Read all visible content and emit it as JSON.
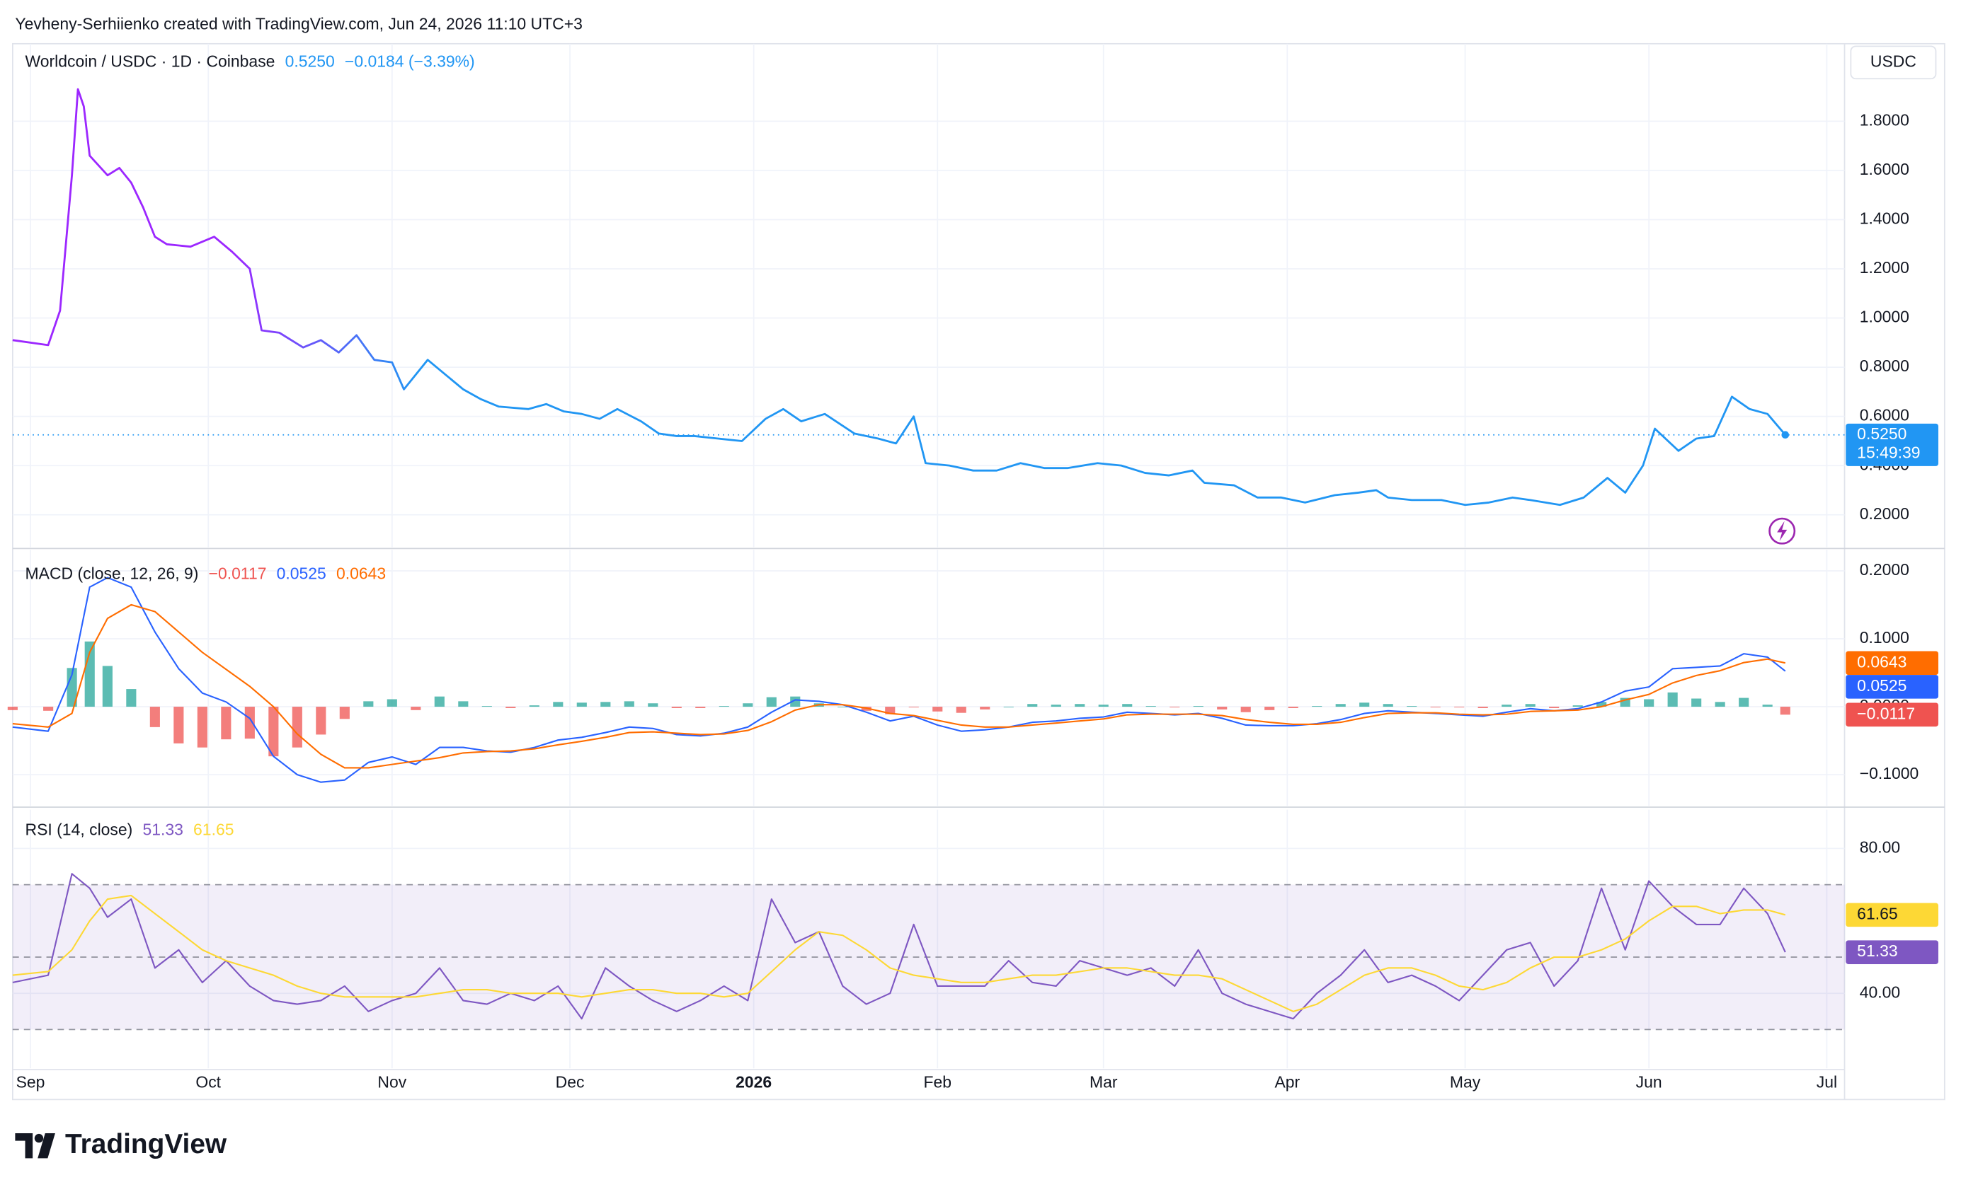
{
  "header": {
    "credit": "Yevheny-Serhiienko created with TradingView.com, Jun 24, 2026 11:10 UTC+3"
  },
  "footer": {
    "brand": "TradingView"
  },
  "chart_data": [
    {
      "type": "line",
      "title": "Worldcoin / USDC · 1D · Coinbase",
      "change": "−0.0184 (−3.39%)",
      "axis_unit": "USDC",
      "countdown": "15:49:39",
      "grid": true,
      "xlim": [
        -3,
        306
      ],
      "xticks": [
        {
          "value": 0,
          "label": "Sep"
        },
        {
          "value": 30,
          "label": "Oct"
        },
        {
          "value": 61,
          "label": "Nov"
        },
        {
          "value": 91,
          "label": "Dec"
        },
        {
          "value": 122,
          "label": "2026"
        },
        {
          "value": 153,
          "label": "Feb"
        },
        {
          "value": 181,
          "label": "Mar"
        },
        {
          "value": 212,
          "label": "Apr"
        },
        {
          "value": 242,
          "label": "May"
        },
        {
          "value": 273,
          "label": "Jun"
        },
        {
          "value": 303,
          "label": "Jul"
        }
      ],
      "ylim": [
        0.068,
        2.115
      ],
      "yticks": [
        {
          "value": 0.2,
          "label": "0.2000"
        },
        {
          "value": 0.4,
          "label": "0.4000"
        },
        {
          "value": 0.6,
          "label": "0.6000"
        },
        {
          "value": 0.8,
          "label": "0.8000"
        },
        {
          "value": 1.0,
          "label": "1.0000"
        },
        {
          "value": 1.2,
          "label": "1.2000"
        },
        {
          "value": 1.4,
          "label": "1.4000"
        },
        {
          "value": 1.6,
          "label": "1.6000"
        },
        {
          "value": 1.8,
          "label": "1.8000"
        }
      ],
      "x": [
        -3,
        3,
        5,
        7,
        8,
        9,
        10,
        13,
        15,
        17,
        19,
        21,
        23,
        27,
        31,
        34,
        37,
        39,
        42,
        46,
        49,
        52,
        55,
        58,
        61,
        63,
        67,
        70,
        73,
        76,
        79,
        84,
        87,
        90,
        93,
        96,
        99,
        103,
        106,
        109,
        112,
        116,
        120,
        124,
        127,
        130,
        134,
        139,
        143,
        146,
        149,
        151,
        155,
        159,
        163,
        167,
        171,
        175,
        180,
        184,
        188,
        192,
        196,
        198,
        203,
        207,
        211,
        215,
        220,
        224,
        227,
        229,
        233,
        238,
        242,
        246,
        250,
        253,
        258,
        262,
        266,
        269,
        272,
        274,
        278,
        281,
        284,
        287,
        290,
        293,
        296
      ],
      "series": [
        {
          "color": "#2196f3",
          "gradient_from": "#9c27ff",
          "last_label": "0.5250",
          "values": [
            0.91,
            0.89,
            1.03,
            1.58,
            1.93,
            1.86,
            1.66,
            1.58,
            1.61,
            1.55,
            1.45,
            1.33,
            1.3,
            1.29,
            1.33,
            1.27,
            1.2,
            0.95,
            0.94,
            0.88,
            0.91,
            0.86,
            0.93,
            0.83,
            0.82,
            0.71,
            0.83,
            0.77,
            0.71,
            0.67,
            0.64,
            0.63,
            0.65,
            0.62,
            0.61,
            0.59,
            0.63,
            0.58,
            0.53,
            0.52,
            0.52,
            0.51,
            0.5,
            0.59,
            0.63,
            0.58,
            0.61,
            0.53,
            0.51,
            0.49,
            0.6,
            0.41,
            0.4,
            0.38,
            0.38,
            0.41,
            0.39,
            0.39,
            0.41,
            0.4,
            0.37,
            0.36,
            0.38,
            0.33,
            0.32,
            0.27,
            0.27,
            0.25,
            0.28,
            0.29,
            0.3,
            0.27,
            0.26,
            0.26,
            0.24,
            0.25,
            0.27,
            0.26,
            0.24,
            0.27,
            0.35,
            0.29,
            0.4,
            0.55,
            0.46,
            0.51,
            0.52,
            0.68,
            0.63,
            0.61,
            0.525
          ]
        }
      ]
    },
    {
      "type": "line",
      "title": "MACD (close, 12, 26, 9)",
      "grid": true,
      "xlim": [
        -3,
        306
      ],
      "ylim": [
        -0.146,
        0.231
      ],
      "yticks": [
        {
          "value": 0.2,
          "label": "0.2000"
        },
        {
          "value": 0.1,
          "label": "0.1000"
        },
        {
          "value": 0,
          "label": "0.0000"
        },
        {
          "value": -0.1,
          "label": "−0.1000"
        }
      ],
      "x": [
        -3,
        3,
        7,
        10,
        13,
        17,
        21,
        25,
        29,
        33,
        37,
        41,
        45,
        49,
        53,
        57,
        61,
        65,
        69,
        73,
        77,
        81,
        85,
        89,
        93,
        97,
        101,
        105,
        109,
        113,
        117,
        121,
        125,
        129,
        133,
        137,
        141,
        145,
        149,
        153,
        157,
        161,
        165,
        169,
        173,
        177,
        181,
        185,
        189,
        193,
        197,
        201,
        205,
        209,
        213,
        217,
        221,
        225,
        229,
        233,
        237,
        241,
        245,
        249,
        253,
        257,
        261,
        265,
        269,
        273,
        277,
        281,
        285,
        289,
        293,
        296
      ],
      "series": [
        {
          "type": "bar",
          "color": "#ef5350",
          "positive_color": "#26a69a",
          "negative_color": "#ef5350",
          "last_label": "−0.0117",
          "values": [
            -0.005,
            -0.006,
            0.057,
            0.096,
            0.06,
            0.026,
            -0.03,
            -0.054,
            -0.06,
            -0.048,
            -0.047,
            -0.073,
            -0.06,
            -0.041,
            -0.018,
            0.008,
            0.011,
            -0.005,
            0.015,
            0.008,
            0.001,
            -0.002,
            0.002,
            0.007,
            0.006,
            0.007,
            0.008,
            0.005,
            -0.002,
            -0.002,
            0.001,
            0.005,
            0.014,
            0.015,
            0.005,
            0.0,
            -0.006,
            -0.011,
            -0.001,
            -0.007,
            -0.009,
            -0.004,
            0.0,
            0.004,
            0.003,
            0.004,
            0.003,
            0.004,
            0.001,
            -0.001,
            0.001,
            -0.004,
            -0.008,
            -0.005,
            -0.002,
            0.001,
            0.004,
            0.006,
            0.004,
            0.001,
            -0.001,
            -0.001,
            -0.002,
            0.003,
            0.004,
            -0.002,
            0.002,
            0.007,
            0.013,
            0.011,
            0.021,
            0.012,
            0.007,
            0.013,
            0.003,
            -0.0117
          ]
        },
        {
          "color": "#2962ff",
          "last_label": "0.0525",
          "values": [
            -0.03,
            -0.036,
            0.047,
            0.176,
            0.19,
            0.176,
            0.11,
            0.056,
            0.02,
            0.007,
            -0.017,
            -0.073,
            -0.1,
            -0.111,
            -0.108,
            -0.082,
            -0.074,
            -0.085,
            -0.06,
            -0.06,
            -0.065,
            -0.067,
            -0.06,
            -0.049,
            -0.045,
            -0.038,
            -0.03,
            -0.032,
            -0.041,
            -0.043,
            -0.039,
            -0.03,
            -0.008,
            0.01,
            0.008,
            0.003,
            -0.008,
            -0.021,
            -0.014,
            -0.027,
            -0.036,
            -0.034,
            -0.03,
            -0.023,
            -0.021,
            -0.017,
            -0.015,
            -0.008,
            -0.01,
            -0.012,
            -0.01,
            -0.017,
            -0.027,
            -0.028,
            -0.028,
            -0.025,
            -0.019,
            -0.01,
            -0.006,
            -0.008,
            -0.01,
            -0.012,
            -0.014,
            -0.008,
            -0.003,
            -0.006,
            -0.003,
            0.007,
            0.023,
            0.029,
            0.056,
            0.058,
            0.06,
            0.078,
            0.073,
            0.0525
          ]
        },
        {
          "color": "#ff6d00",
          "last_label": "0.0643",
          "values": [
            -0.025,
            -0.03,
            -0.01,
            0.08,
            0.13,
            0.15,
            0.14,
            0.11,
            0.08,
            0.055,
            0.03,
            0.0,
            -0.04,
            -0.07,
            -0.09,
            -0.09,
            -0.085,
            -0.08,
            -0.075,
            -0.068,
            -0.066,
            -0.065,
            -0.062,
            -0.056,
            -0.051,
            -0.045,
            -0.038,
            -0.037,
            -0.039,
            -0.041,
            -0.04,
            -0.035,
            -0.022,
            -0.005,
            0.003,
            0.003,
            -0.002,
            -0.01,
            -0.013,
            -0.02,
            -0.027,
            -0.03,
            -0.03,
            -0.027,
            -0.024,
            -0.021,
            -0.018,
            -0.012,
            -0.011,
            -0.011,
            -0.011,
            -0.013,
            -0.019,
            -0.023,
            -0.026,
            -0.026,
            -0.023,
            -0.016,
            -0.01,
            -0.009,
            -0.009,
            -0.011,
            -0.012,
            -0.011,
            -0.007,
            -0.006,
            -0.005,
            0.0,
            0.01,
            0.018,
            0.035,
            0.046,
            0.053,
            0.065,
            0.07,
            0.0643
          ]
        }
      ]
    },
    {
      "type": "line",
      "title": "RSI (14, close)",
      "grid": true,
      "xlim": [
        -3,
        306
      ],
      "ylim": [
        19.3,
        90.7
      ],
      "yticks": [
        {
          "value": 80,
          "label": "80.00"
        },
        {
          "value": 40,
          "label": "40.00"
        }
      ],
      "band_lines": [
        70,
        50,
        30
      ],
      "band_color": "#7e57c2",
      "x": [
        -3,
        3,
        7,
        10,
        13,
        17,
        21,
        25,
        29,
        33,
        37,
        41,
        45,
        49,
        53,
        57,
        61,
        65,
        69,
        73,
        77,
        81,
        85,
        89,
        93,
        97,
        101,
        105,
        109,
        113,
        117,
        121,
        125,
        129,
        133,
        137,
        141,
        145,
        149,
        153,
        157,
        161,
        165,
        169,
        173,
        177,
        181,
        185,
        189,
        193,
        197,
        201,
        205,
        209,
        213,
        217,
        221,
        225,
        229,
        233,
        237,
        241,
        245,
        249,
        253,
        257,
        261,
        265,
        269,
        273,
        277,
        281,
        285,
        289,
        293,
        296
      ],
      "series": [
        {
          "color": "#7e57c2",
          "last_label": "51.33",
          "values": [
            43,
            45,
            73,
            69,
            61,
            66,
            47,
            52,
            43,
            49,
            42,
            38,
            37,
            38,
            42,
            35,
            38,
            40,
            47,
            38,
            37,
            40,
            38,
            42,
            33,
            47,
            42,
            38,
            35,
            38,
            42,
            38,
            66,
            54,
            57,
            42,
            37,
            40,
            59,
            42,
            42,
            42,
            49,
            43,
            42,
            49,
            47,
            45,
            47,
            42,
            52,
            40,
            37,
            35,
            33,
            40,
            45,
            52,
            43,
            45,
            42,
            38,
            45,
            52,
            54,
            42,
            49,
            69,
            52,
            71,
            64,
            59,
            59,
            69,
            62,
            51.33
          ]
        },
        {
          "color": "#fdd835",
          "last_label": "61.65",
          "values": [
            45,
            46,
            52,
            60,
            66,
            67,
            62,
            57,
            52,
            49,
            47,
            45,
            42,
            40,
            39,
            39,
            39,
            39,
            40,
            41,
            41,
            40,
            40,
            40,
            39,
            40,
            41,
            41,
            40,
            40,
            39,
            40,
            46,
            52,
            57,
            56,
            52,
            47,
            45,
            44,
            43,
            43,
            44,
            45,
            45,
            46,
            47,
            47,
            46,
            45,
            45,
            44,
            41,
            38,
            35,
            37,
            41,
            45,
            47,
            47,
            45,
            42,
            41,
            43,
            47,
            50,
            50,
            52,
            55,
            60,
            64,
            64,
            62,
            63,
            63,
            61.65
          ]
        }
      ]
    }
  ]
}
